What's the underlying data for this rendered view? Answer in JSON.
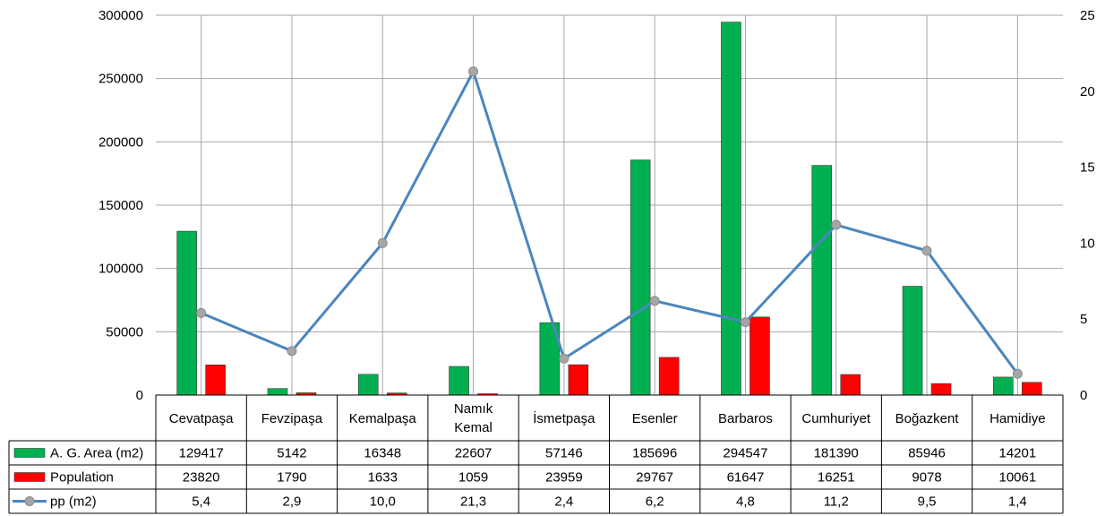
{
  "chart_data": {
    "type": "bar",
    "title": "",
    "categories": [
      "Cevatpaşa",
      "Fevzipaşa",
      "Kemalpaşa",
      "Namık Kemal",
      "İsmetpaşa",
      "Esenler",
      "Barbaros",
      "Cumhuriyet",
      "Boğazkent",
      "Hamidiye"
    ],
    "category_lines": [
      [
        "Cevatpaşa"
      ],
      [
        "Fevzipaşa"
      ],
      [
        "Kemalpaşa"
      ],
      [
        "Namık",
        "Kemal"
      ],
      [
        "İsmetpaşa"
      ],
      [
        "Esenler"
      ],
      [
        "Barbaros"
      ],
      [
        "Cumhuriyet"
      ],
      [
        "Boğazkent"
      ],
      [
        "Hamidiye"
      ]
    ],
    "ylim": [
      0,
      300000
    ],
    "yticks": [
      "0",
      "50000",
      "100000",
      "150000",
      "200000",
      "250000",
      "300000"
    ],
    "y2lim": [
      0,
      25
    ],
    "y2ticks": [
      "0",
      "5",
      "10",
      "15",
      "20",
      "25"
    ],
    "grid": true,
    "legend": "data-table",
    "series": [
      {
        "name": "A. G. Area (m2)",
        "kind": "bar",
        "axis": "left",
        "color": "#00b050",
        "values": [
          129417,
          5142,
          16348,
          22607,
          57146,
          185696,
          294547,
          181390,
          85946,
          14201
        ],
        "labels": [
          "129417",
          "5142",
          "16348",
          "22607",
          "57146",
          "185696",
          "294547",
          "181390",
          "85946",
          "14201"
        ]
      },
      {
        "name": "Population",
        "kind": "bar",
        "axis": "left",
        "color": "#ff0000",
        "values": [
          23820,
          1790,
          1633,
          1059,
          23959,
          29767,
          61647,
          16251,
          9078,
          10061
        ],
        "labels": [
          "23820",
          "1790",
          "1633",
          "1059",
          "23959",
          "29767",
          "61647",
          "16251",
          "9078",
          "10061"
        ]
      },
      {
        "name": "pp (m2)",
        "kind": "line",
        "axis": "right",
        "color": "#4a86c0",
        "marker_color": "#a6a6a6",
        "values": [
          5.4,
          2.9,
          10.0,
          21.3,
          2.4,
          6.2,
          4.8,
          11.2,
          9.5,
          1.4
        ],
        "labels": [
          "5,4",
          "2,9",
          "10,0",
          "21,3",
          "2,4",
          "6,2",
          "4,8",
          "11,2",
          "9,5",
          "1,4"
        ]
      }
    ]
  }
}
